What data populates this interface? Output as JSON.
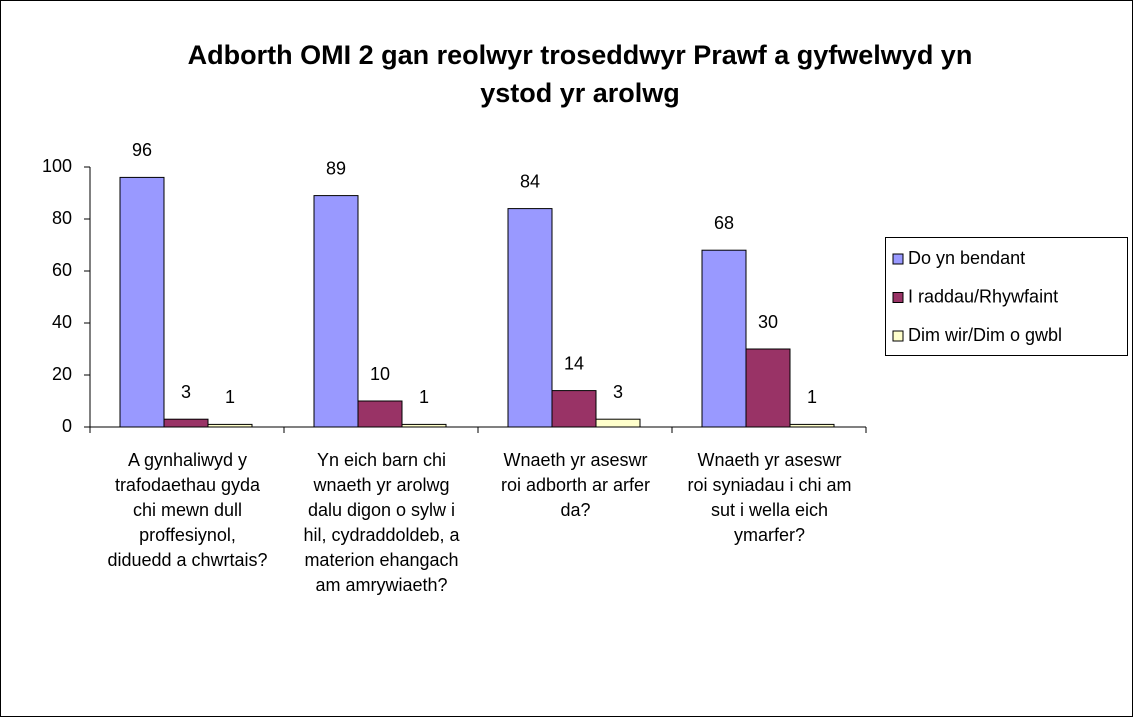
{
  "chart_data": {
    "type": "bar",
    "title": "Adborth OMI 2 gan reolwyr troseddwyr Prawf a gyfwelwyd yn ystod yr arolwg",
    "categories": [
      "A gynhaliwyd y trafodaethau gyda chi mewn dull proffesiynol, diduedd a chwrtais?",
      "Yn eich barn chi wnaeth yr arolwg dalu digon o sylw i hil, cydraddoldeb, a materion ehangach am amrywiaeth?",
      "Wnaeth yr aseswr roi adborth ar arfer da?",
      "Wnaeth yr aseswr roi syniadau i chi am sut i wella eich ymarfer?"
    ],
    "series": [
      {
        "name": "Do yn bendant",
        "color": "#9999ff",
        "values": [
          96,
          89,
          84,
          68
        ]
      },
      {
        "name": "I raddau/Rhywfaint",
        "color": "#993366",
        "values": [
          3,
          10,
          14,
          30
        ]
      },
      {
        "name": "Dim wir/Dim o gwbl",
        "color": "#ffffcc",
        "values": [
          1,
          1,
          3,
          1
        ]
      }
    ],
    "ylim": [
      0,
      100
    ],
    "yticks": [
      0,
      20,
      40,
      60,
      80,
      100
    ],
    "grid": false,
    "legend": "right"
  }
}
